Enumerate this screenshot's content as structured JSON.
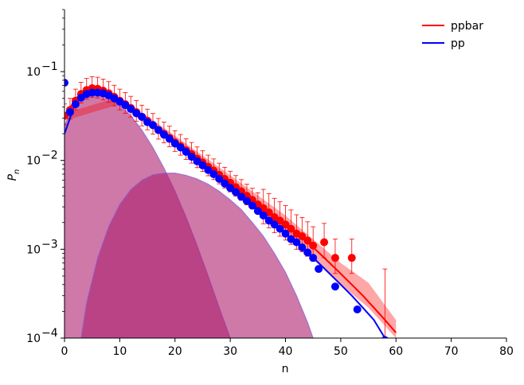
{
  "chart_data": {
    "type": "scatter",
    "title": "",
    "xlabel": "n",
    "ylabel": "P_n",
    "ylabel_main": "P",
    "ylabel_sub": "n",
    "xscale": "linear",
    "yscale": "log",
    "xlim": [
      0,
      80
    ],
    "ylim": [
      0.0001,
      0.5
    ],
    "xticks": [
      0,
      10,
      20,
      30,
      40,
      50,
      60,
      70,
      80
    ],
    "yticks": [
      {
        "value": 0.1,
        "base": "10",
        "exp": "−1"
      },
      {
        "value": 0.01,
        "base": "10",
        "exp": "−2"
      },
      {
        "value": 0.001,
        "base": "10",
        "exp": "−3"
      },
      {
        "value": 0.0001,
        "base": "10",
        "exp": "−4"
      }
    ],
    "grid": false,
    "legend_position": "top-right",
    "series": [
      {
        "name": "ppbar",
        "color": "#ff0000",
        "points": [
          [
            0,
            0.032
          ],
          [
            1,
            0.037
          ],
          [
            2,
            0.047
          ],
          [
            3,
            0.056
          ],
          [
            4,
            0.062
          ],
          [
            5,
            0.065
          ],
          [
            6,
            0.064
          ],
          [
            7,
            0.061
          ],
          [
            8,
            0.057
          ],
          [
            9,
            0.052
          ],
          [
            10,
            0.047
          ],
          [
            11,
            0.043
          ],
          [
            12,
            0.039
          ],
          [
            13,
            0.035
          ],
          [
            14,
            0.031
          ],
          [
            15,
            0.028
          ],
          [
            16,
            0.025
          ],
          [
            17,
            0.022
          ],
          [
            18,
            0.02
          ],
          [
            19,
            0.018
          ],
          [
            20,
            0.016
          ],
          [
            21,
            0.0145
          ],
          [
            22,
            0.013
          ],
          [
            23,
            0.0118
          ],
          [
            24,
            0.0105
          ],
          [
            25,
            0.0095
          ],
          [
            26,
            0.0085
          ],
          [
            27,
            0.0077
          ],
          [
            28,
            0.0069
          ],
          [
            29,
            0.0062
          ],
          [
            30,
            0.0056
          ],
          [
            31,
            0.005
          ],
          [
            32,
            0.0045
          ],
          [
            33,
            0.004
          ],
          [
            34,
            0.0036
          ],
          [
            35,
            0.0032
          ],
          [
            36,
            0.0029
          ],
          [
            37,
            0.0026
          ],
          [
            38,
            0.0023
          ],
          [
            39,
            0.0021
          ],
          [
            40,
            0.0019
          ],
          [
            41,
            0.0017
          ],
          [
            42,
            0.0015
          ],
          [
            43,
            0.0014
          ],
          [
            44,
            0.00125
          ],
          [
            45,
            0.0011
          ],
          [
            47,
            0.0012
          ],
          [
            49,
            0.0008
          ],
          [
            52,
            0.0008
          ]
        ],
        "error_ratio": 0.35
      },
      {
        "name": "pp",
        "color": "#0000ff",
        "points": [
          [
            0,
            0.075
          ],
          [
            1,
            0.035
          ],
          [
            2,
            0.043
          ],
          [
            3,
            0.051
          ],
          [
            4,
            0.056
          ],
          [
            5,
            0.058
          ],
          [
            6,
            0.058
          ],
          [
            7,
            0.057
          ],
          [
            8,
            0.054
          ],
          [
            9,
            0.05
          ],
          [
            10,
            0.046
          ],
          [
            11,
            0.042
          ],
          [
            12,
            0.038
          ],
          [
            13,
            0.034
          ],
          [
            14,
            0.031
          ],
          [
            15,
            0.027
          ],
          [
            16,
            0.025
          ],
          [
            17,
            0.022
          ],
          [
            18,
            0.0195
          ],
          [
            19,
            0.0175
          ],
          [
            20,
            0.0155
          ],
          [
            21,
            0.014
          ],
          [
            22,
            0.0125
          ],
          [
            23,
            0.011
          ],
          [
            24,
            0.0098
          ],
          [
            25,
            0.0088
          ],
          [
            26,
            0.0078
          ],
          [
            27,
            0.007
          ],
          [
            28,
            0.0062
          ],
          [
            29,
            0.0055
          ],
          [
            30,
            0.0049
          ],
          [
            31,
            0.0044
          ],
          [
            32,
            0.0039
          ],
          [
            33,
            0.0035
          ],
          [
            34,
            0.0031
          ],
          [
            35,
            0.0027
          ],
          [
            36,
            0.0024
          ],
          [
            37,
            0.0021
          ],
          [
            38,
            0.0019
          ],
          [
            39,
            0.0017
          ],
          [
            40,
            0.0015
          ],
          [
            41,
            0.0013
          ],
          [
            42,
            0.0012
          ],
          [
            43,
            0.00105
          ],
          [
            44,
            0.00092
          ],
          [
            45,
            0.0008
          ],
          [
            46,
            0.0006
          ],
          [
            49,
            0.00038
          ],
          [
            53,
            0.00021
          ],
          [
            58,
            9.5e-05
          ]
        ]
      }
    ],
    "fit_curves": [
      {
        "name": "ppbar",
        "color": "#ff0000",
        "points": [
          [
            0,
            0.03
          ],
          [
            2,
            0.05
          ],
          [
            4,
            0.06
          ],
          [
            6,
            0.06
          ],
          [
            8,
            0.055
          ],
          [
            10,
            0.047
          ],
          [
            12,
            0.039
          ],
          [
            14,
            0.032
          ],
          [
            16,
            0.026
          ],
          [
            18,
            0.021
          ],
          [
            20,
            0.0165
          ],
          [
            22,
            0.0132
          ],
          [
            24,
            0.0106
          ],
          [
            26,
            0.0086
          ],
          [
            28,
            0.007
          ],
          [
            30,
            0.0057
          ],
          [
            32,
            0.0046
          ],
          [
            34,
            0.0037
          ],
          [
            36,
            0.003
          ],
          [
            38,
            0.0024
          ],
          [
            40,
            0.0019
          ],
          [
            42,
            0.0015
          ],
          [
            44,
            0.0012
          ],
          [
            46,
            0.00092
          ],
          [
            48,
            0.0007
          ],
          [
            50,
            0.00053
          ],
          [
            52,
            0.0004
          ],
          [
            54,
            0.0003
          ],
          [
            56,
            0.00022
          ],
          [
            58,
            0.00016
          ],
          [
            60,
            0.000115
          ]
        ]
      },
      {
        "name": "pp",
        "color": "#0000ff",
        "points": [
          [
            0,
            0.02
          ],
          [
            2,
            0.045
          ],
          [
            4,
            0.056
          ],
          [
            6,
            0.058
          ],
          [
            8,
            0.054
          ],
          [
            10,
            0.047
          ],
          [
            12,
            0.039
          ],
          [
            14,
            0.032
          ],
          [
            16,
            0.026
          ],
          [
            18,
            0.0205
          ],
          [
            20,
            0.016
          ],
          [
            22,
            0.0127
          ],
          [
            24,
            0.01
          ],
          [
            26,
            0.008
          ],
          [
            28,
            0.0063
          ],
          [
            30,
            0.005
          ],
          [
            32,
            0.004
          ],
          [
            34,
            0.0031
          ],
          [
            36,
            0.0025
          ],
          [
            38,
            0.0019
          ],
          [
            40,
            0.0015
          ],
          [
            42,
            0.0012
          ],
          [
            44,
            0.00092
          ],
          [
            46,
            0.0007
          ],
          [
            48,
            0.00053
          ],
          [
            50,
            0.0004
          ],
          [
            52,
            0.0003
          ],
          [
            54,
            0.00022
          ],
          [
            56,
            0.00016
          ],
          [
            58,
            0.0001
          ]
        ]
      }
    ],
    "bands": [
      {
        "color": "#ff0000",
        "opacity": 0.35,
        "upper": [
          [
            0,
            0.034
          ],
          [
            10,
            0.052
          ],
          [
            20,
            0.019
          ],
          [
            30,
            0.0068
          ],
          [
            40,
            0.0024
          ],
          [
            50,
            0.0007
          ],
          [
            55,
            0.00042
          ],
          [
            60,
            0.00016
          ]
        ],
        "lower": [
          [
            0,
            0.028
          ],
          [
            10,
            0.043
          ],
          [
            20,
            0.0145
          ],
          [
            30,
            0.0048
          ],
          [
            40,
            0.0015
          ],
          [
            50,
            0.0004
          ],
          [
            55,
            0.00022
          ],
          [
            60,
            0.0001
          ]
        ]
      }
    ],
    "components": [
      {
        "color": "#ad1f6e",
        "opacity": 0.6,
        "points": [
          [
            0,
            0.025
          ],
          [
            2,
            0.045
          ],
          [
            4,
            0.055
          ],
          [
            6,
            0.057
          ],
          [
            8,
            0.052
          ],
          [
            10,
            0.042
          ],
          [
            12,
            0.032
          ],
          [
            14,
            0.022
          ],
          [
            16,
            0.014
          ],
          [
            18,
            0.0082
          ],
          [
            20,
            0.0045
          ],
          [
            22,
            0.0023
          ],
          [
            24,
            0.0011
          ],
          [
            26,
            0.0005
          ],
          [
            28,
            0.00022
          ],
          [
            30,
            0.0001
          ]
        ]
      },
      {
        "color": "#ad1f6e",
        "opacity": 0.6,
        "points": [
          [
            3,
            0.0001
          ],
          [
            4,
            0.00025
          ],
          [
            6,
            0.0008
          ],
          [
            8,
            0.0018
          ],
          [
            10,
            0.0032
          ],
          [
            12,
            0.0047
          ],
          [
            14,
            0.006
          ],
          [
            16,
            0.0069
          ],
          [
            18,
            0.0072
          ],
          [
            20,
            0.0072
          ],
          [
            22,
            0.0068
          ],
          [
            24,
            0.0062
          ],
          [
            26,
            0.0054
          ],
          [
            28,
            0.0045
          ],
          [
            30,
            0.0036
          ],
          [
            32,
            0.0028
          ],
          [
            34,
            0.002
          ],
          [
            36,
            0.0014
          ],
          [
            38,
            0.0009
          ],
          [
            40,
            0.00055
          ],
          [
            42,
            0.0003
          ],
          [
            44,
            0.00015
          ],
          [
            45,
            0.0001
          ]
        ]
      }
    ]
  }
}
